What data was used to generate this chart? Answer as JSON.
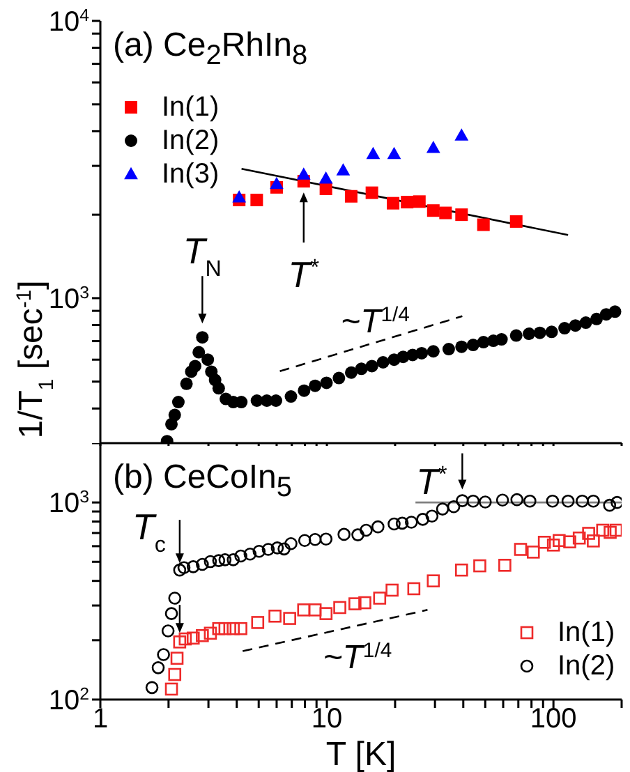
{
  "chart_data": [
    {
      "type": "scatter",
      "title": "(a) Ce$_{2}$RhIn$_{8}$",
      "ylabel": "1/T$_{1}$ [sec$^{-1}$]",
      "log": "xy",
      "legend": "top left",
      "tick_labels": "y",
      "xlim": [
        1,
        200
      ],
      "xticks": [
        1,
        {
          "value": 2,
          "label": null
        },
        {
          "value": 3,
          "label": null
        },
        {
          "value": 4,
          "label": null
        },
        {
          "value": 5,
          "label": null
        },
        {
          "value": 6,
          "label": null
        },
        {
          "value": 7,
          "label": null
        },
        {
          "value": 8,
          "label": null
        },
        {
          "value": 9,
          "label": null
        },
        10,
        {
          "value": 20,
          "label": null
        },
        {
          "value": 30,
          "label": null
        },
        {
          "value": 40,
          "label": null
        },
        {
          "value": 50,
          "label": null
        },
        {
          "value": 60,
          "label": null
        },
        {
          "value": 70,
          "label": null
        },
        {
          "value": 80,
          "label": null
        },
        {
          "value": 90,
          "label": null
        },
        100,
        {
          "value": 200,
          "label": null
        }
      ],
      "ylim": [
        300,
        10000
      ],
      "yticks": [
        {
          "value": 400,
          "label": null
        },
        {
          "value": 500,
          "label": null
        },
        {
          "value": 600,
          "label": null
        },
        {
          "value": 700,
          "label": null
        },
        {
          "value": 800,
          "label": null
        },
        {
          "value": 900,
          "label": null
        },
        {
          "value": 1000,
          "label": "10$^{3}$"
        },
        {
          "value": 2000,
          "label": null
        },
        {
          "value": 3000,
          "label": null
        },
        {
          "value": 4000,
          "label": null
        },
        {
          "value": 5000,
          "label": null
        },
        {
          "value": 6000,
          "label": null
        },
        {
          "value": 7000,
          "label": null
        },
        {
          "value": 8000,
          "label": null
        },
        {
          "value": 9000,
          "label": null
        },
        {
          "value": 10000,
          "label": "10$^{4}$"
        }
      ],
      "annotations": [
        {
          "text": "T$_{N}$",
          "x": 2.82,
          "y": 722
        },
        {
          "text": "T$^{*}$",
          "x": 7.9,
          "y": 2640
        }
      ],
      "series": [
        {
          "name": "In(1)",
          "type": "scatter",
          "marker": "square",
          "color": "#ff0000",
          "x": [
            4.1,
            4.9,
            6.0,
            7.9,
            9.9,
            12.8,
            15.8,
            19.6,
            22.6,
            25.6,
            29.5,
            33.4,
            39.3,
            49.1,
            68.5
          ],
          "values": [
            2260,
            2260,
            2510,
            2640,
            2480,
            2330,
            2400,
            2200,
            2220,
            2230,
            2070,
            2030,
            2000,
            1840,
            1890
          ]
        },
        {
          "name": "In(2)",
          "type": "scatter",
          "marker": "circle",
          "color": "#000000",
          "x": [
            1.97,
            2.06,
            2.13,
            2.21,
            2.4,
            2.52,
            2.62,
            2.72,
            2.82,
            2.98,
            3.09,
            3.21,
            3.33,
            3.58,
            3.86,
            4.19,
            4.91,
            5.43,
            5.96,
            6.94,
            7.93,
            8.87,
            9.96,
            11.3,
            12.8,
            14.2,
            15.8,
            17.7,
            19.8,
            21.7,
            23.9,
            26.2,
            29.5,
            34.5,
            39.3,
            44.2,
            49.1,
            54.3,
            59.0,
            68.5,
            78.0,
            87.1,
            98.2,
            112,
            125,
            139,
            155,
            171,
            187
          ],
          "values": [
            305,
            351,
            379,
            422,
            491,
            543,
            569,
            638,
            722,
            600,
            543,
            507,
            473,
            433,
            422,
            422,
            427,
            427,
            427,
            442,
            464,
            483,
            495,
            515,
            539,
            556,
            569,
            587,
            600,
            614,
            624,
            633,
            643,
            655,
            668,
            678,
            694,
            702,
            710,
            733,
            744,
            750,
            756,
            779,
            797,
            816,
            841,
            874,
            894
          ]
        },
        {
          "name": "In(3)",
          "type": "scatter",
          "marker": "triangle",
          "color": "#0000ff",
          "x": [
            4.1,
            6.0,
            7.9,
            9.9,
            11.8,
            16.0,
            19.8,
            29.5,
            39.3
          ],
          "values": [
            2310,
            2580,
            2790,
            2700,
            2890,
            3310,
            3310,
            3480,
            3860
          ]
        },
        {
          "type": "line",
          "color": "#000000",
          "line_style": "solid",
          "x": [
            4.2,
            116
          ],
          "values": [
            2930,
            1690
          ]
        },
        {
          "type": "line",
          "name": "~T$^{1/4}$",
          "color": "#000000",
          "line_style": "dashed",
          "x": [
            6.2,
            39.6
          ],
          "values": [
            545,
            861
          ]
        }
      ]
    },
    {
      "type": "scatter",
      "title": "(b) CeCoIn$_{5}$",
      "xlabel": "T [K]",
      "log": "xy",
      "legend": "bottom right",
      "xlim": [
        1,
        200
      ],
      "xticks": [
        1,
        {
          "value": 2,
          "label": null
        },
        {
          "value": 3,
          "label": null
        },
        {
          "value": 4,
          "label": null
        },
        {
          "value": 5,
          "label": null
        },
        {
          "value": 6,
          "label": null
        },
        {
          "value": 7,
          "label": null
        },
        {
          "value": 8,
          "label": null
        },
        {
          "value": 9,
          "label": null
        },
        10,
        {
          "value": 20,
          "label": null
        },
        {
          "value": 30,
          "label": null
        },
        {
          "value": 40,
          "label": null
        },
        {
          "value": 50,
          "label": null
        },
        {
          "value": 60,
          "label": null
        },
        {
          "value": 70,
          "label": null
        },
        {
          "value": 80,
          "label": null
        },
        {
          "value": 90,
          "label": null
        },
        100,
        {
          "value": 200,
          "label": null
        }
      ],
      "ylim": [
        100,
        2000
      ],
      "yticks": [
        {
          "value": 100,
          "label": "10$^{2}$"
        },
        {
          "value": 200,
          "label": null
        },
        {
          "value": 300,
          "label": null
        },
        {
          "value": 400,
          "label": null
        },
        {
          "value": 500,
          "label": null
        },
        {
          "value": 600,
          "label": null
        },
        {
          "value": 700,
          "label": null
        },
        {
          "value": 800,
          "label": null
        },
        {
          "value": 900,
          "label": null
        },
        {
          "value": 1000,
          "label": "10$^{3}$"
        },
        {
          "value": 2000,
          "label": null
        }
      ],
      "annotations": [
        {
          "text": "T$_{c}$",
          "x": 2.24,
          "y": 454
        },
        {
          "text": "T$^{*}$",
          "x": 39.6,
          "y": 1021
        }
      ],
      "series": [
        {
          "name": "In(1)",
          "type": "scatter",
          "marker": "square",
          "color": "#ee2a2a",
          "x": [
            2.06,
            2.13,
            2.18,
            2.24,
            2.37,
            2.57,
            2.82,
            3.06,
            3.33,
            3.55,
            3.86,
            4.17,
            4.95,
            5.9,
            6.85,
            7.9,
            8.87,
            9.91,
            11.4,
            13.3,
            14.7,
            17.1,
            19.4,
            24.2,
            29.5,
            39.3,
            47.3,
            61.0,
            71.6,
            81.5,
            91.2,
            100,
            106,
            118,
            130,
            143,
            150,
            165,
            178,
            189
          ],
          "values": [
            113,
            134,
            162,
            196,
            203,
            205,
            211,
            217,
            229,
            229,
            229,
            229,
            246,
            265,
            258,
            285,
            285,
            273,
            293,
            306,
            310,
            327,
            359,
            365,
            400,
            454,
            477,
            480,
            578,
            560,
            628,
            608,
            641,
            631,
            660,
            697,
            638,
            723,
            705,
            723
          ]
        },
        {
          "name": "In(2)",
          "type": "scatter",
          "marker": "circle",
          "color": "#000000",
          "x": [
            1.69,
            1.8,
            1.9,
            1.99,
            2.06,
            2.13,
            2.24,
            2.34,
            2.57,
            2.82,
            3.06,
            3.33,
            3.55,
            3.86,
            4.17,
            4.58,
            5.02,
            5.51,
            6.04,
            6.47,
            6.94,
            7.98,
            8.87,
            9.91,
            11.9,
            13.7,
            14.9,
            16.8,
            19.8,
            21.5,
            23.6,
            26.5,
            29.1,
            32.4,
            36.3,
            39.6,
            44.2,
            50.0,
            59.6,
            69.0,
            78.7,
            99.1,
            116,
            134,
            150,
            177,
            191
          ],
          "values": [
            115,
            145,
            169,
            223,
            273,
            327,
            454,
            467,
            472,
            485,
            501,
            507,
            512,
            512,
            535,
            547,
            565,
            578,
            588,
            581,
            618,
            641,
            649,
            652,
            689,
            685,
            723,
            752,
            778,
            785,
            794,
            821,
            853,
            926,
            952,
            1021,
            1016,
            1005,
            1028,
            1033,
            1016,
            1016,
            1016,
            1016,
            1016,
            968,
            1000
          ]
        },
        {
          "type": "line",
          "color": "#808080",
          "line_style": "solid",
          "x": [
            24.6,
            200
          ],
          "values": [
            1000,
            1000
          ]
        },
        {
          "type": "line",
          "name": "~T$^{1/4}$",
          "color": "#000000",
          "line_style": "dashed",
          "x": [
            4.25,
            27.8
          ],
          "values": [
            176,
            285
          ]
        }
      ]
    }
  ]
}
